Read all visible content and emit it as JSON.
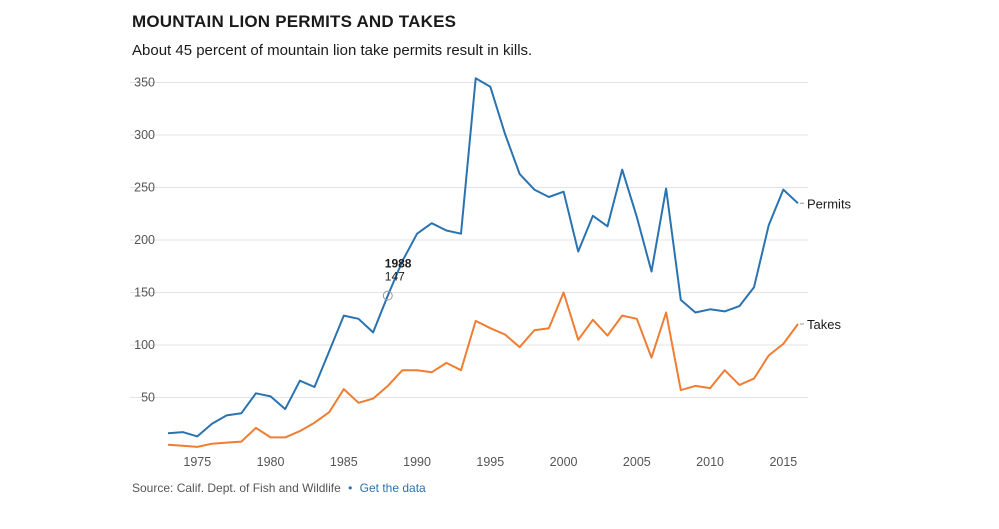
{
  "header": {
    "title": "MOUNTAIN LION PERMITS AND TAKES",
    "subtitle": "About 45 percent of mountain lion take permits result in kills."
  },
  "footer": {
    "source": "Source: Calif. Dept. of Fish and Wildlife",
    "separator": "•",
    "link_label": "Get the data"
  },
  "colors": {
    "permits": "#2a73b0",
    "takes": "#ef7d33",
    "grid": "#e3e3e3"
  },
  "chart_data": {
    "type": "line",
    "title": "MOUNTAIN LION PERMITS AND TAKES",
    "subtitle": "About 45 percent of mountain lion take permits result in kills.",
    "xlabel": "",
    "ylabel": "",
    "xlim": [
      1973,
      2016
    ],
    "ylim": [
      0,
      360
    ],
    "x_ticks": [
      1975,
      1980,
      1985,
      1990,
      1995,
      2000,
      2005,
      2010,
      2015
    ],
    "y_ticks": [
      50,
      100,
      150,
      200,
      250,
      300,
      350
    ],
    "grid": "horizontal",
    "x": [
      1973,
      1974,
      1975,
      1976,
      1977,
      1978,
      1979,
      1980,
      1981,
      1982,
      1983,
      1984,
      1985,
      1986,
      1987,
      1988,
      1989,
      1990,
      1991,
      1992,
      1993,
      1994,
      1995,
      1996,
      1997,
      1998,
      1999,
      2000,
      2001,
      2002,
      2003,
      2004,
      2005,
      2006,
      2007,
      2008,
      2009,
      2010,
      2011,
      2012,
      2013,
      2014,
      2015,
      2016
    ],
    "series": [
      {
        "name": "Permits",
        "color": "#2a73b0",
        "values": [
          16,
          17,
          13,
          25,
          33,
          35,
          54,
          51,
          39,
          66,
          60,
          94,
          128,
          125,
          112,
          147,
          180,
          206,
          216,
          209,
          206,
          354,
          346,
          301,
          263,
          248,
          241,
          246,
          189,
          223,
          213,
          267,
          222,
          170,
          249,
          143,
          131,
          134,
          132,
          137,
          155,
          214,
          248,
          235
        ]
      },
      {
        "name": "Takes",
        "color": "#ef7d33",
        "values": [
          5,
          4,
          3,
          6,
          7,
          8,
          21,
          12,
          12,
          18,
          26,
          36,
          58,
          45,
          49,
          61,
          76,
          76,
          74,
          83,
          76,
          123,
          116,
          110,
          98,
          114,
          116,
          150,
          105,
          124,
          109,
          128,
          125,
          88,
          131,
          57,
          61,
          59,
          76,
          62,
          68,
          90,
          101,
          120
        ]
      }
    ],
    "annotation": {
      "x": 1988,
      "year_label": "1988",
      "value_label": "147"
    }
  }
}
